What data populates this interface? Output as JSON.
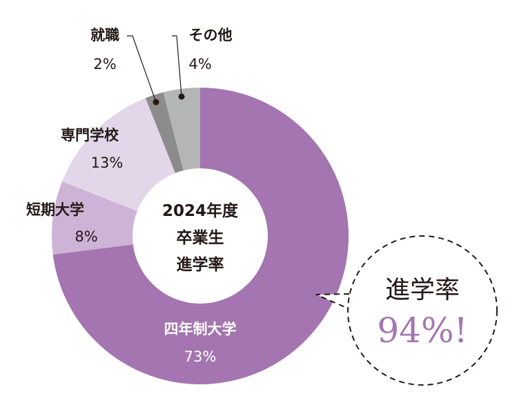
{
  "chart_data": {
    "type": "pie",
    "donut": true,
    "start": "top",
    "direction": "clockwise",
    "center_label": [
      "2024年度",
      "卒業生",
      "進学率"
    ],
    "slices": [
      {
        "label": "四年制大学",
        "value": 73,
        "value_label": "73%",
        "color": "#a475b0"
      },
      {
        "label": "短期大学",
        "value": 8,
        "value_label": "8%",
        "color": "#cdb3d6"
      },
      {
        "label": "専門学校",
        "value": 13,
        "value_label": "13%",
        "color": "#e4d6e9"
      },
      {
        "label": "就職",
        "value": 2,
        "value_label": "2%",
        "color": "#8c8c8c"
      },
      {
        "label": "その他",
        "value": 4,
        "value_label": "4%",
        "color": "#b4b5b5"
      }
    ],
    "callout": {
      "title": "進学率",
      "value": "94%!",
      "color": "#a475b0"
    }
  }
}
